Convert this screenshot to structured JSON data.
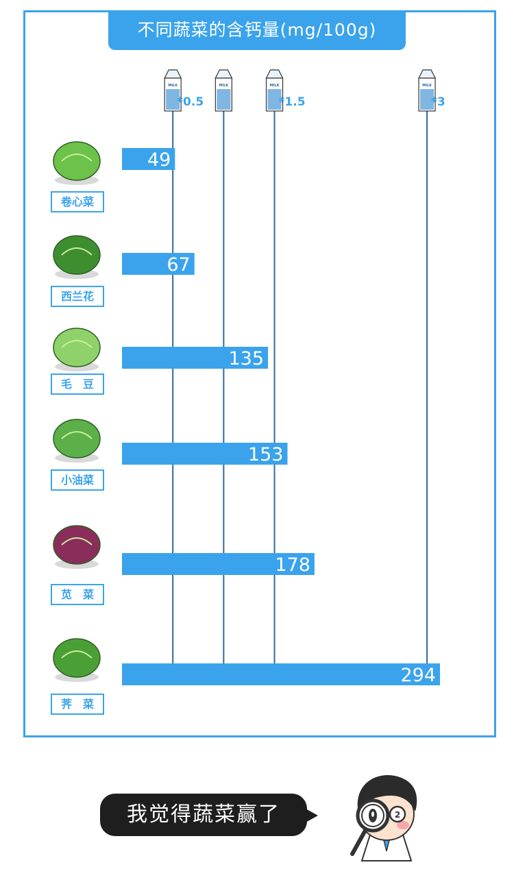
{
  "title": "不同蔬菜的含钙量(mg/100g)",
  "milk_markers": [
    {
      "multiplier": 0.5,
      "label": "*0.5"
    },
    {
      "multiplier": 1,
      "label": ""
    },
    {
      "multiplier": 1.5,
      "label": "*1.5"
    },
    {
      "multiplier": 3,
      "label": "*3"
    }
  ],
  "milk_carton_text": "MILK",
  "chart_data": {
    "type": "bar",
    "orientation": "horizontal",
    "title": "不同蔬菜的含钙量(mg/100g)",
    "categories": [
      "卷心菜",
      "西兰花",
      "毛　豆",
      "小油菜",
      "苋　菜",
      "荠　菜"
    ],
    "values": [
      49,
      67,
      135,
      153,
      178,
      294
    ],
    "value_labels": [
      "49",
      "67",
      "135",
      "153",
      "178",
      "294"
    ],
    "bar_color": "#3aa3ec",
    "reference_lines": [
      "*0.5",
      "",
      "*1.5",
      "*3"
    ]
  },
  "colors": {
    "accent": "#3aa3ec",
    "line": "#2f6a9c",
    "bubble": "#1e1e1e"
  },
  "speech_bubble": "我觉得蔬菜赢了"
}
